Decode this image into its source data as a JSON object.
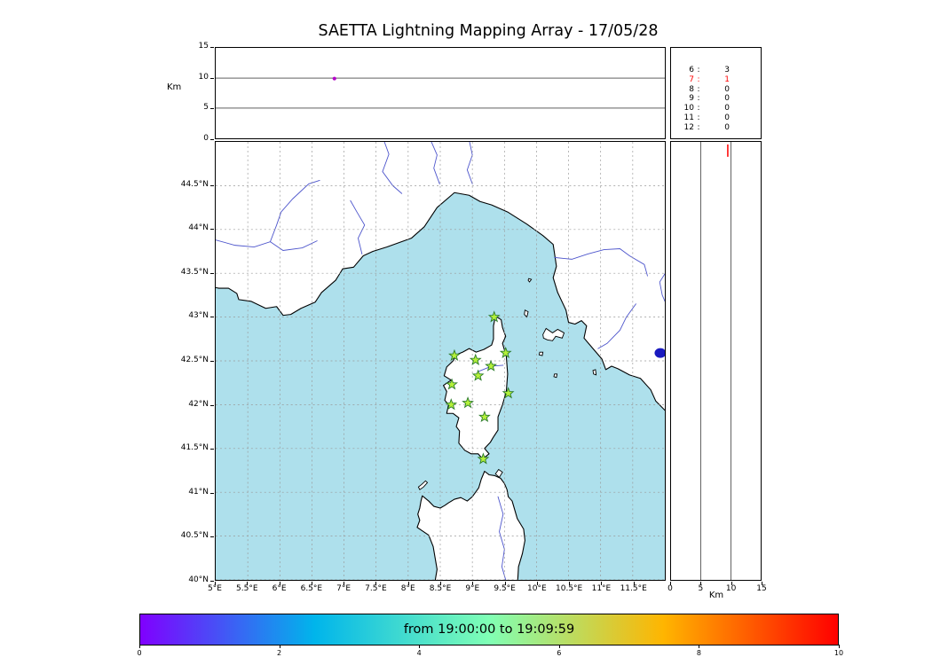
{
  "title": "SAETTA Lightning Mapping Array - 17/05/28",
  "colors": {
    "sea": "#aee0ec",
    "land": "#ffffff",
    "coast": "#000000",
    "grid": "#999999",
    "river": "#4d55cc",
    "lake": "#1a1abf",
    "station_fill": "#b4f03a",
    "station_edge": "#2a7a2a",
    "highlight": "#ff0000"
  },
  "chart_data": [
    {
      "name": "alt-vs-lon",
      "type": "scatter",
      "title": "",
      "xlabel": "",
      "ylabel": "Km",
      "xlim": [
        5,
        12
      ],
      "ylim": [
        0,
        15
      ],
      "ytick_values": [
        15,
        10,
        5,
        0
      ],
      "ytick_labels": [
        "15",
        "10",
        "5",
        "0"
      ],
      "gridlines_km": [
        5,
        10
      ],
      "points": [
        {
          "x": 6.85,
          "y": 9.9,
          "color": "#b400c8"
        }
      ]
    },
    {
      "name": "station-counts",
      "type": "table",
      "rows": [
        {
          "label": "6",
          "value": "3",
          "highlight": false
        },
        {
          "label": "7",
          "value": "1",
          "highlight": true
        },
        {
          "label": "8",
          "value": "0",
          "highlight": false
        },
        {
          "label": "9",
          "value": "0",
          "highlight": false
        },
        {
          "label": "10",
          "value": "0",
          "highlight": false
        },
        {
          "label": "11",
          "value": "0",
          "highlight": false
        },
        {
          "label": "12",
          "value": "0",
          "highlight": false
        }
      ]
    },
    {
      "name": "map",
      "type": "map",
      "lon_range": [
        5,
        12
      ],
      "lat_range": [
        40,
        45
      ],
      "lon_tick_values": [
        5,
        5.5,
        6,
        6.5,
        7,
        7.5,
        8,
        8.5,
        9,
        9.5,
        10,
        10.5,
        11,
        11.5
      ],
      "lon_tick_labels": [
        "5°E",
        "5.5°E",
        "6°E",
        "6.5°E",
        "7°E",
        "7.5°E",
        "8°E",
        "8.5°E",
        "9°E",
        "9.5°E",
        "10°E",
        "10.5°E",
        "11°E",
        "11.5°E"
      ],
      "lat_tick_values": [
        44.5,
        44,
        43.5,
        43,
        42.5,
        42,
        41.5,
        41,
        40.5,
        40
      ],
      "lat_tick_labels": [
        "44.5°N",
        "44°N",
        "43.5°N",
        "43°N",
        "42.5°N",
        "42°N",
        "41.5°N",
        "41°N",
        "40.5°N",
        "40°N"
      ],
      "stations_lonlat": [
        [
          9.34,
          43.0
        ],
        [
          8.72,
          42.56
        ],
        [
          9.05,
          42.51
        ],
        [
          9.52,
          42.59
        ],
        [
          9.29,
          42.44
        ],
        [
          9.09,
          42.33
        ],
        [
          8.68,
          42.23
        ],
        [
          9.56,
          42.13
        ],
        [
          8.67,
          42.0
        ],
        [
          8.93,
          42.02
        ],
        [
          9.19,
          41.86
        ],
        [
          9.17,
          41.38
        ]
      ],
      "lake_bolsena_lonlat": [
        11.93,
        42.59
      ]
    },
    {
      "name": "alt-vs-lat",
      "type": "scatter",
      "xlabel": "Km",
      "ylabel": "",
      "xlim": [
        0,
        15
      ],
      "ylim": [
        40,
        45
      ],
      "xtick_values": [
        0,
        5,
        10,
        15
      ],
      "xtick_labels": [
        "0",
        "5",
        "10",
        "15"
      ],
      "gridlines_km": [
        5,
        10
      ],
      "points": [
        {
          "x": 9.5,
          "y": 44.9,
          "color": "#ff0000",
          "marker": "vline"
        }
      ]
    },
    {
      "name": "colorbar",
      "type": "colorbar",
      "label": "from 19:00:00 to 19:09:59",
      "range": [
        0,
        10
      ],
      "tick_values": [
        0,
        2,
        4,
        6,
        8,
        10
      ],
      "tick_labels": [
        "0",
        "2",
        "4",
        "6",
        "8",
        "10"
      ],
      "gradient_stops": [
        "#8000ff",
        "#00b5eb",
        "#80ffb5",
        "#ffb500",
        "#ff0000"
      ]
    }
  ],
  "geo": {
    "mainland": [
      [
        4.9,
        45.1
      ],
      [
        4.9,
        43.35
      ],
      [
        5.05,
        43.33
      ],
      [
        5.2,
        43.33
      ],
      [
        5.33,
        43.27
      ],
      [
        5.36,
        43.2
      ],
      [
        5.55,
        43.18
      ],
      [
        5.78,
        43.1
      ],
      [
        5.95,
        43.12
      ],
      [
        6.05,
        43.02
      ],
      [
        6.17,
        43.03
      ],
      [
        6.33,
        43.1
      ],
      [
        6.55,
        43.17
      ],
      [
        6.65,
        43.28
      ],
      [
        6.87,
        43.42
      ],
      [
        6.98,
        43.55
      ],
      [
        7.15,
        43.57
      ],
      [
        7.3,
        43.7
      ],
      [
        7.45,
        43.75
      ],
      [
        7.67,
        43.8
      ],
      [
        8.05,
        43.9
      ],
      [
        8.25,
        44.03
      ],
      [
        8.45,
        44.25
      ],
      [
        8.72,
        44.42
      ],
      [
        8.95,
        44.39
      ],
      [
        9.12,
        44.32
      ],
      [
        9.3,
        44.28
      ],
      [
        9.55,
        44.2
      ],
      [
        9.85,
        44.06
      ],
      [
        10.1,
        43.93
      ],
      [
        10.26,
        43.83
      ],
      [
        10.31,
        43.58
      ],
      [
        10.26,
        43.45
      ],
      [
        10.33,
        43.28
      ],
      [
        10.46,
        43.08
      ],
      [
        10.5,
        42.94
      ],
      [
        10.6,
        42.92
      ],
      [
        10.7,
        42.96
      ],
      [
        10.78,
        42.9
      ],
      [
        10.74,
        42.76
      ],
      [
        10.88,
        42.64
      ],
      [
        11.02,
        42.52
      ],
      [
        11.08,
        42.4
      ],
      [
        11.17,
        42.44
      ],
      [
        11.27,
        42.41
      ],
      [
        11.45,
        42.34
      ],
      [
        11.62,
        42.3
      ],
      [
        11.78,
        42.17
      ],
      [
        11.86,
        42.04
      ],
      [
        12.05,
        41.9
      ],
      [
        12.1,
        41.84
      ],
      [
        12.1,
        45.1
      ]
    ],
    "corsica": [
      [
        9.36,
        43.01
      ],
      [
        9.45,
        42.97
      ],
      [
        9.47,
        42.88
      ],
      [
        9.52,
        42.78
      ],
      [
        9.47,
        42.7
      ],
      [
        9.53,
        42.55
      ],
      [
        9.55,
        42.35
      ],
      [
        9.53,
        42.15
      ],
      [
        9.47,
        42.0
      ],
      [
        9.4,
        41.86
      ],
      [
        9.4,
        41.71
      ],
      [
        9.32,
        41.62
      ],
      [
        9.28,
        41.57
      ],
      [
        9.19,
        41.5
      ],
      [
        9.26,
        41.44
      ],
      [
        9.16,
        41.38
      ],
      [
        9.09,
        41.44
      ],
      [
        8.98,
        41.44
      ],
      [
        8.88,
        41.48
      ],
      [
        8.79,
        41.56
      ],
      [
        8.8,
        41.7
      ],
      [
        8.75,
        41.75
      ],
      [
        8.79,
        41.85
      ],
      [
        8.7,
        41.9
      ],
      [
        8.6,
        41.9
      ],
      [
        8.63,
        42.0
      ],
      [
        8.57,
        42.05
      ],
      [
        8.6,
        42.15
      ],
      [
        8.55,
        42.22
      ],
      [
        8.67,
        42.28
      ],
      [
        8.56,
        42.33
      ],
      [
        8.6,
        42.43
      ],
      [
        8.7,
        42.5
      ],
      [
        8.75,
        42.57
      ],
      [
        8.85,
        42.6
      ],
      [
        8.95,
        42.64
      ],
      [
        9.06,
        42.6
      ],
      [
        9.18,
        42.63
      ],
      [
        9.3,
        42.68
      ],
      [
        9.33,
        42.75
      ],
      [
        9.33,
        42.9
      ]
    ],
    "sardinia": [
      [
        8.22,
        40.96
      ],
      [
        8.32,
        40.9
      ],
      [
        8.4,
        40.84
      ],
      [
        8.5,
        40.82
      ],
      [
        8.57,
        40.85
      ],
      [
        8.63,
        40.88
      ],
      [
        8.72,
        40.92
      ],
      [
        8.82,
        40.94
      ],
      [
        8.92,
        40.9
      ],
      [
        9.0,
        40.95
      ],
      [
        9.1,
        41.05
      ],
      [
        9.14,
        41.15
      ],
      [
        9.19,
        41.24
      ],
      [
        9.26,
        41.2
      ],
      [
        9.35,
        41.19
      ],
      [
        9.44,
        41.16
      ],
      [
        9.5,
        41.1
      ],
      [
        9.54,
        41.03
      ],
      [
        9.56,
        40.95
      ],
      [
        9.62,
        40.9
      ],
      [
        9.66,
        40.8
      ],
      [
        9.7,
        40.7
      ],
      [
        9.8,
        40.58
      ],
      [
        9.82,
        40.45
      ],
      [
        9.78,
        40.3
      ],
      [
        9.72,
        40.15
      ],
      [
        9.7,
        39.9
      ],
      [
        8.4,
        39.9
      ],
      [
        8.45,
        40.12
      ],
      [
        8.42,
        40.25
      ],
      [
        8.39,
        40.38
      ],
      [
        8.32,
        40.51
      ],
      [
        8.2,
        40.57
      ],
      [
        8.14,
        40.6
      ],
      [
        8.18,
        40.68
      ],
      [
        8.15,
        40.75
      ],
      [
        8.18,
        40.82
      ],
      [
        8.2,
        40.9
      ]
    ],
    "islands": [
      [
        [
          8.18,
          41.03
        ],
        [
          8.24,
          41.06
        ],
        [
          8.3,
          41.11
        ],
        [
          8.27,
          41.13
        ],
        [
          8.21,
          41.09
        ],
        [
          8.16,
          41.06
        ]
      ],
      [
        [
          9.36,
          41.21
        ],
        [
          9.41,
          41.26
        ],
        [
          9.47,
          41.23
        ],
        [
          9.42,
          41.17
        ]
      ],
      [
        [
          10.1,
          42.8
        ],
        [
          10.15,
          42.87
        ],
        [
          10.25,
          42.82
        ],
        [
          10.33,
          42.86
        ],
        [
          10.43,
          42.82
        ],
        [
          10.4,
          42.76
        ],
        [
          10.3,
          42.78
        ],
        [
          10.25,
          42.73
        ],
        [
          10.17,
          42.74
        ],
        [
          10.11,
          42.76
        ]
      ],
      [
        [
          9.82,
          43.08
        ],
        [
          9.87,
          43.06
        ],
        [
          9.85,
          43.0
        ],
        [
          9.81,
          43.03
        ]
      ],
      [
        [
          9.88,
          43.44
        ],
        [
          9.92,
          43.43
        ],
        [
          9.89,
          43.4
        ],
        [
          9.87,
          43.42
        ]
      ],
      [
        [
          10.05,
          42.6
        ],
        [
          10.1,
          42.6
        ],
        [
          10.09,
          42.56
        ],
        [
          10.04,
          42.57
        ]
      ],
      [
        [
          10.28,
          42.35
        ],
        [
          10.32,
          42.35
        ],
        [
          10.31,
          42.31
        ],
        [
          10.27,
          42.32
        ]
      ],
      [
        [
          10.88,
          42.39
        ],
        [
          10.92,
          42.4
        ],
        [
          10.93,
          42.34
        ],
        [
          10.89,
          42.35
        ]
      ]
    ],
    "rivers": [
      [
        [
          5.0,
          43.88
        ],
        [
          5.3,
          43.82
        ],
        [
          5.6,
          43.8
        ],
        [
          5.85,
          43.86
        ],
        [
          5.95,
          44.05
        ],
        [
          6.02,
          44.2
        ],
        [
          6.2,
          44.35
        ],
        [
          6.45,
          44.52
        ],
        [
          6.62,
          44.56
        ]
      ],
      [
        [
          5.85,
          43.86
        ],
        [
          6.05,
          43.76
        ],
        [
          6.35,
          43.79
        ],
        [
          6.58,
          43.87
        ]
      ],
      [
        [
          7.28,
          43.72
        ],
        [
          7.22,
          43.9
        ],
        [
          7.32,
          44.05
        ],
        [
          7.2,
          44.2
        ],
        [
          7.1,
          44.33
        ]
      ],
      [
        [
          7.62,
          45.02
        ],
        [
          7.7,
          44.86
        ],
        [
          7.6,
          44.66
        ],
        [
          7.76,
          44.5
        ],
        [
          7.9,
          44.41
        ]
      ],
      [
        [
          8.35,
          45.02
        ],
        [
          8.45,
          44.85
        ],
        [
          8.4,
          44.7
        ],
        [
          8.49,
          44.52
        ]
      ],
      [
        [
          8.95,
          45.02
        ],
        [
          9.0,
          44.85
        ],
        [
          8.92,
          44.68
        ],
        [
          9.0,
          44.52
        ]
      ],
      [
        [
          10.28,
          43.68
        ],
        [
          10.55,
          43.66
        ],
        [
          10.8,
          43.72
        ],
        [
          11.05,
          43.77
        ],
        [
          11.3,
          43.78
        ],
        [
          11.45,
          43.7
        ],
        [
          11.68,
          43.6
        ],
        [
          11.73,
          43.47
        ]
      ],
      [
        [
          12.05,
          43.55
        ],
        [
          11.92,
          43.4
        ],
        [
          11.96,
          43.25
        ],
        [
          12.05,
          43.1
        ]
      ],
      [
        [
          11.55,
          43.15
        ],
        [
          11.4,
          43.0
        ],
        [
          11.3,
          42.85
        ],
        [
          11.1,
          42.7
        ],
        [
          10.96,
          42.64
        ]
      ],
      [
        [
          9.1,
          42.38
        ],
        [
          9.3,
          42.44
        ],
        [
          9.48,
          42.45
        ]
      ],
      [
        [
          9.4,
          40.95
        ],
        [
          9.48,
          40.75
        ],
        [
          9.42,
          40.55
        ],
        [
          9.5,
          40.35
        ],
        [
          9.46,
          40.15
        ],
        [
          9.52,
          40.0
        ]
      ]
    ]
  }
}
